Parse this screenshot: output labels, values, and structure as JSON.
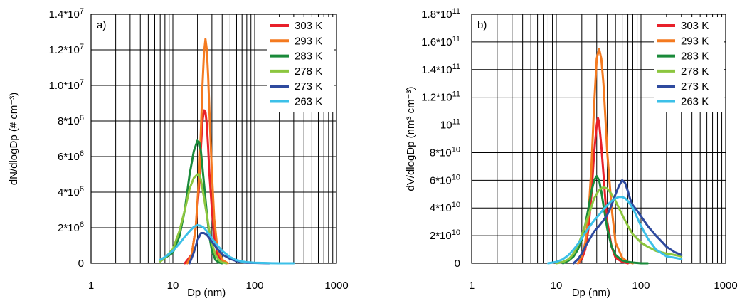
{
  "chart_data": [
    {
      "type": "line",
      "panel_label": "a)",
      "xlabel": "Dp (nm)",
      "ylabel": "dN/dlogDp (# cm⁻³)",
      "x_scale": "log",
      "xlim": [
        1,
        1000
      ],
      "ylim": [
        0,
        14000000
      ],
      "grid": true,
      "legend_position": "top-right",
      "x_ticks": [
        "1",
        "10",
        "100",
        "1000"
      ],
      "y_ticks": [
        {
          "base": "0",
          "exp": "",
          "value": 0
        },
        {
          "base": "2*10",
          "exp": "6",
          "value": 2000000
        },
        {
          "base": "4*10",
          "exp": "6",
          "value": 4000000
        },
        {
          "base": "6*10",
          "exp": "6",
          "value": 6000000
        },
        {
          "base": "8*10",
          "exp": "6",
          "value": 8000000
        },
        {
          "base": "1.0*10",
          "exp": "7",
          "value": 10000000
        },
        {
          "base": "1.2*10",
          "exp": "7",
          "value": 12000000
        },
        {
          "base": "1.4*10",
          "exp": "7",
          "value": 14000000
        }
      ],
      "series": [
        {
          "name": "303 K",
          "color": "#e8202a",
          "x": [
            14,
            17,
            19,
            21,
            22,
            23,
            24,
            25,
            26,
            27,
            28,
            30,
            32,
            35,
            40,
            45
          ],
          "y": [
            0,
            500000,
            2000000,
            4500000,
            6500000,
            8000000,
            8600000,
            8500000,
            7800000,
            6500000,
            5000000,
            3000000,
            1500000,
            500000,
            100000,
            0
          ]
        },
        {
          "name": "293 K",
          "color": "#f47a20",
          "x": [
            15,
            17,
            19,
            21,
            22,
            23,
            24,
            25,
            26,
            27,
            28,
            30,
            32,
            35,
            40,
            47
          ],
          "y": [
            0,
            500000,
            2000000,
            5000000,
            7500000,
            10000000,
            11800000,
            12600000,
            12000000,
            10500000,
            8500000,
            5000000,
            2500000,
            800000,
            200000,
            0
          ]
        },
        {
          "name": "283 K",
          "color": "#1a8a3a",
          "x": [
            8,
            10,
            12,
            14,
            16,
            18,
            20,
            21,
            22,
            24,
            26,
            28,
            30,
            33,
            36,
            40
          ],
          "y": [
            300000,
            600000,
            1500000,
            3000000,
            5000000,
            6300000,
            6900000,
            6800000,
            6300000,
            4500000,
            2800000,
            1500000,
            700000,
            200000,
            50000,
            0
          ]
        },
        {
          "name": "278 K",
          "color": "#8cc63f",
          "x": [
            7,
            8,
            10,
            12,
            14,
            16,
            18,
            20,
            21,
            22,
            24,
            26,
            28,
            30,
            33,
            36,
            40,
            45
          ],
          "y": [
            100000,
            300000,
            800000,
            1800000,
            3000000,
            4200000,
            4800000,
            5000000,
            5000000,
            4700000,
            3700000,
            2700000,
            1800000,
            1100000,
            500000,
            200000,
            50000,
            0
          ]
        },
        {
          "name": "273 K",
          "color": "#2e4a9e",
          "x": [
            16,
            18,
            20,
            22,
            24,
            26,
            28,
            30,
            35,
            40,
            50,
            60,
            70,
            80,
            100,
            120,
            150
          ],
          "y": [
            0,
            600000,
            1300000,
            1700000,
            1700000,
            1600000,
            1400000,
            1200000,
            800000,
            500000,
            250000,
            120000,
            60000,
            30000,
            20000,
            10000,
            0
          ]
        },
        {
          "name": "263 K",
          "color": "#3cc0e8",
          "x": [
            7,
            8,
            10,
            12,
            14,
            16,
            18,
            20,
            22,
            24,
            26,
            28,
            30,
            35,
            40,
            50,
            60,
            70,
            80,
            100,
            150,
            200,
            300
          ],
          "y": [
            200000,
            350000,
            700000,
            1100000,
            1500000,
            1800000,
            2050000,
            2150000,
            2100000,
            2000000,
            1800000,
            1600000,
            1400000,
            1000000,
            700000,
            350000,
            180000,
            100000,
            60000,
            30000,
            10000,
            0,
            0
          ]
        }
      ]
    },
    {
      "type": "line",
      "panel_label": "b)",
      "xlabel": "Dp (nm)",
      "ylabel": "dV/dlogDp (nm³ cm⁻³)",
      "x_scale": "log",
      "xlim": [
        1,
        1000
      ],
      "ylim": [
        0,
        180000000000
      ],
      "grid": true,
      "legend_position": "top-right",
      "x_ticks": [
        "1",
        "10",
        "100",
        "1000"
      ],
      "y_ticks": [
        {
          "base": "0",
          "exp": "",
          "value": 0
        },
        {
          "base": "2*10",
          "exp": "10",
          "value": 20000000000
        },
        {
          "base": "4*10",
          "exp": "10",
          "value": 40000000000
        },
        {
          "base": "6*10",
          "exp": "10",
          "value": 60000000000
        },
        {
          "base": "8*10",
          "exp": "10",
          "value": 80000000000
        },
        {
          "base": "10",
          "exp": "11",
          "value": 100000000000
        },
        {
          "base": "1.2*10",
          "exp": "11",
          "value": 120000000000
        },
        {
          "base": "1.4*10",
          "exp": "11",
          "value": 140000000000
        },
        {
          "base": "1.6*10",
          "exp": "11",
          "value": 160000000000
        },
        {
          "base": "1.8*10",
          "exp": "11",
          "value": 180000000000
        }
      ],
      "series": [
        {
          "name": "303 K",
          "color": "#e8202a",
          "x": [
            18,
            20,
            22,
            24,
            26,
            28,
            30,
            31,
            32,
            34,
            36,
            38,
            40,
            45,
            50,
            60,
            70
          ],
          "y": [
            0,
            3000000000,
            10000000000,
            25000000000,
            50000000000,
            80000000000,
            100000000000,
            105000000000,
            102000000000,
            85000000000,
            65000000000,
            45000000000,
            30000000000,
            12000000000,
            4000000000,
            1000000000,
            0
          ]
        },
        {
          "name": "293 K",
          "color": "#f47a20",
          "x": [
            18,
            20,
            22,
            24,
            26,
            28,
            30,
            32,
            34,
            36,
            38,
            40,
            45,
            50,
            60,
            70,
            80
          ],
          "y": [
            0,
            5000000000,
            15000000000,
            35000000000,
            70000000000,
            115000000000,
            148000000000,
            155000000000,
            148000000000,
            130000000000,
            105000000000,
            80000000000,
            40000000000,
            15000000000,
            4000000000,
            1000000000,
            0
          ]
        },
        {
          "name": "283 K",
          "color": "#1a8a3a",
          "x": [
            12,
            14,
            16,
            18,
            20,
            22,
            24,
            26,
            28,
            30,
            32,
            34,
            36,
            40,
            45,
            50,
            60,
            70,
            80,
            100,
            120
          ],
          "y": [
            0,
            2000000000,
            5000000000,
            10000000000,
            17000000000,
            28000000000,
            40000000000,
            52000000000,
            60000000000,
            63000000000,
            60000000000,
            52000000000,
            42000000000,
            25000000000,
            12000000000,
            6000000000,
            2000000000,
            1000000000,
            500000000,
            0,
            0
          ]
        },
        {
          "name": "278 K",
          "color": "#8cc63f",
          "x": [
            10,
            12,
            14,
            16,
            18,
            20,
            22,
            25,
            28,
            32,
            36,
            40,
            45,
            50,
            60,
            70,
            80,
            100,
            120,
            150,
            200,
            250,
            300
          ],
          "y": [
            0,
            1000000000,
            3000000000,
            7000000000,
            13000000000,
            20000000000,
            28000000000,
            38000000000,
            47000000000,
            53000000000,
            55000000000,
            54000000000,
            50000000000,
            45000000000,
            35000000000,
            27000000000,
            21000000000,
            15000000000,
            12000000000,
            9000000000,
            7000000000,
            6000000000,
            5000000000
          ]
        },
        {
          "name": "273 K",
          "color": "#2e4a9e",
          "x": [
            16,
            18,
            20,
            22,
            25,
            28,
            32,
            36,
            40,
            45,
            50,
            55,
            60,
            65,
            70,
            75,
            80,
            90,
            100,
            120,
            150,
            180,
            200,
            250,
            300
          ],
          "y": [
            0,
            3000000000,
            7000000000,
            12000000000,
            18000000000,
            23000000000,
            27000000000,
            31000000000,
            35000000000,
            42000000000,
            50000000000,
            56000000000,
            60000000000,
            58000000000,
            52000000000,
            46000000000,
            42000000000,
            38000000000,
            34000000000,
            27000000000,
            20000000000,
            15000000000,
            12000000000,
            8000000000,
            6000000000
          ]
        },
        {
          "name": "263 K",
          "color": "#3cc0e8",
          "x": [
            8,
            10,
            12,
            14,
            16,
            18,
            20,
            22,
            25,
            28,
            32,
            36,
            40,
            45,
            50,
            55,
            60,
            65,
            70,
            80,
            90,
            100,
            120,
            150,
            200,
            250,
            300
          ],
          "y": [
            0,
            1000000000,
            3000000000,
            6000000000,
            10000000000,
            14000000000,
            18000000000,
            22000000000,
            27000000000,
            31000000000,
            35000000000,
            39000000000,
            42000000000,
            45000000000,
            47000000000,
            48000000000,
            48000000000,
            47000000000,
            45000000000,
            40000000000,
            33000000000,
            27000000000,
            18000000000,
            10000000000,
            5000000000,
            4000000000,
            3000000000
          ]
        }
      ]
    }
  ]
}
